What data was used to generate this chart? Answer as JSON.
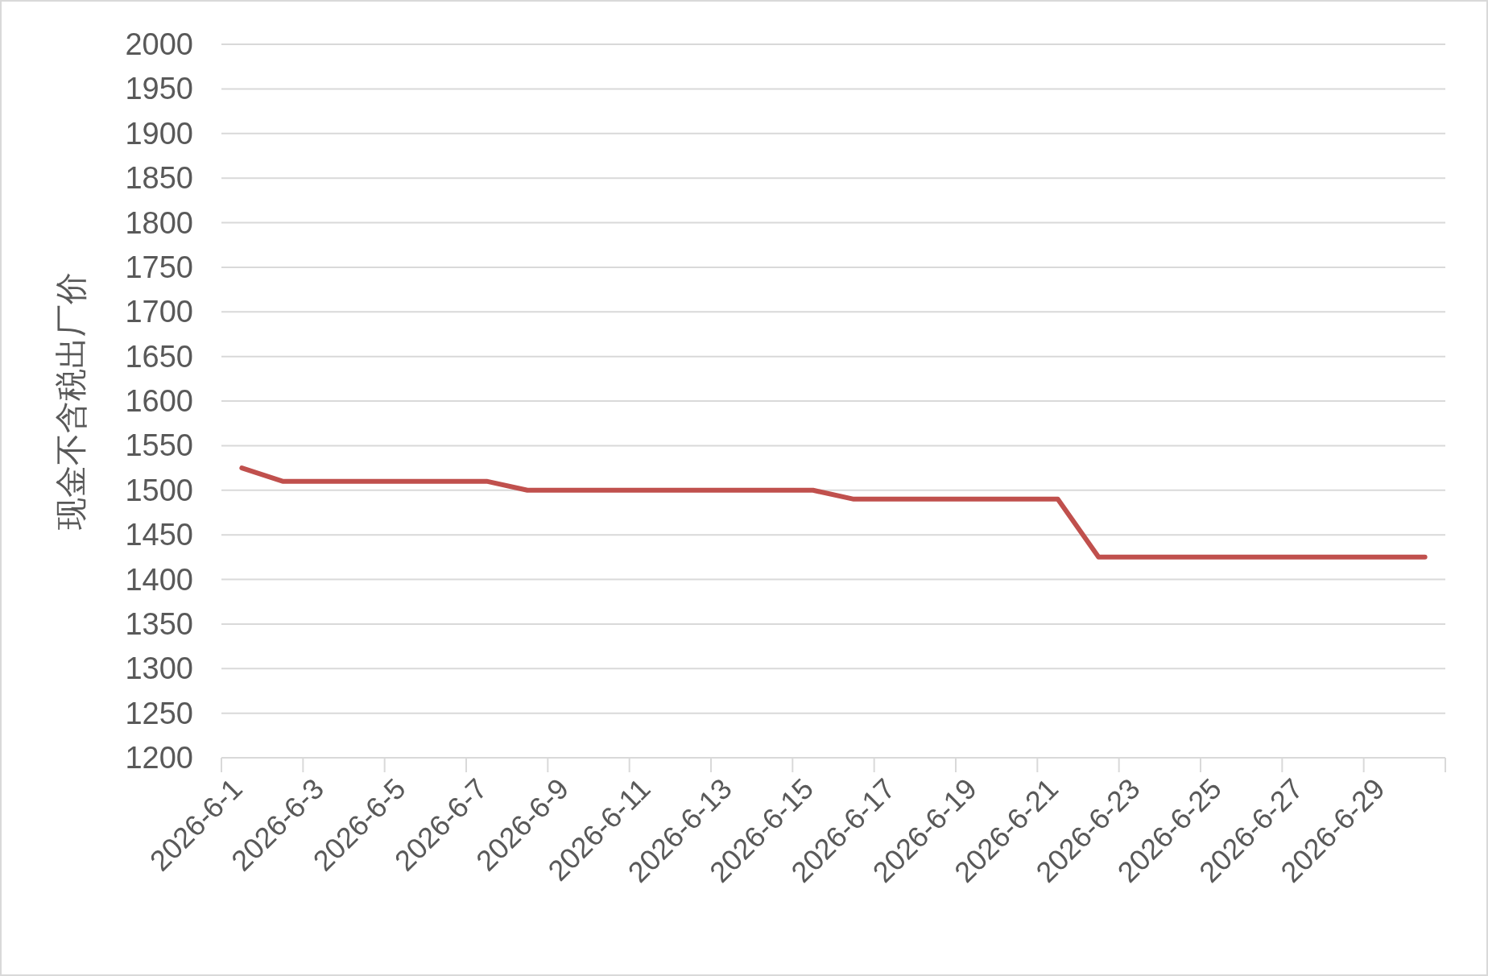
{
  "chart_data": {
    "type": "line",
    "ylabel": "现金不含税出厂价",
    "categories": [
      "2026-6-1",
      null,
      "2026-6-3",
      null,
      "2026-6-5",
      null,
      "2026-6-7",
      null,
      "2026-6-9",
      null,
      "2026-6-11",
      null,
      "2026-6-13",
      null,
      "2026-6-15",
      null,
      "2026-6-17",
      null,
      "2026-6-19",
      null,
      "2026-6-21",
      null,
      "2026-6-23",
      null,
      "2026-6-25",
      null,
      "2026-6-27",
      null,
      "2026-6-29",
      null
    ],
    "series": [
      {
        "color": "#c0504d",
        "values": [
          1525,
          1510,
          1510,
          1510,
          1510,
          1510,
          1510,
          1500,
          1500,
          1500,
          1500,
          1500,
          1500,
          1500,
          1500,
          1490,
          1490,
          1490,
          1490,
          1490,
          1490,
          1425,
          1425,
          1425,
          1425,
          1425,
          1425,
          1425,
          1425,
          1425
        ]
      }
    ],
    "ylim": [
      1200,
      2000
    ],
    "yticks": [
      1200,
      1250,
      1300,
      1350,
      1400,
      1450,
      1500,
      1550,
      1600,
      1650,
      1700,
      1750,
      1800,
      1850,
      1900,
      1950,
      2000
    ],
    "grid": "y"
  }
}
